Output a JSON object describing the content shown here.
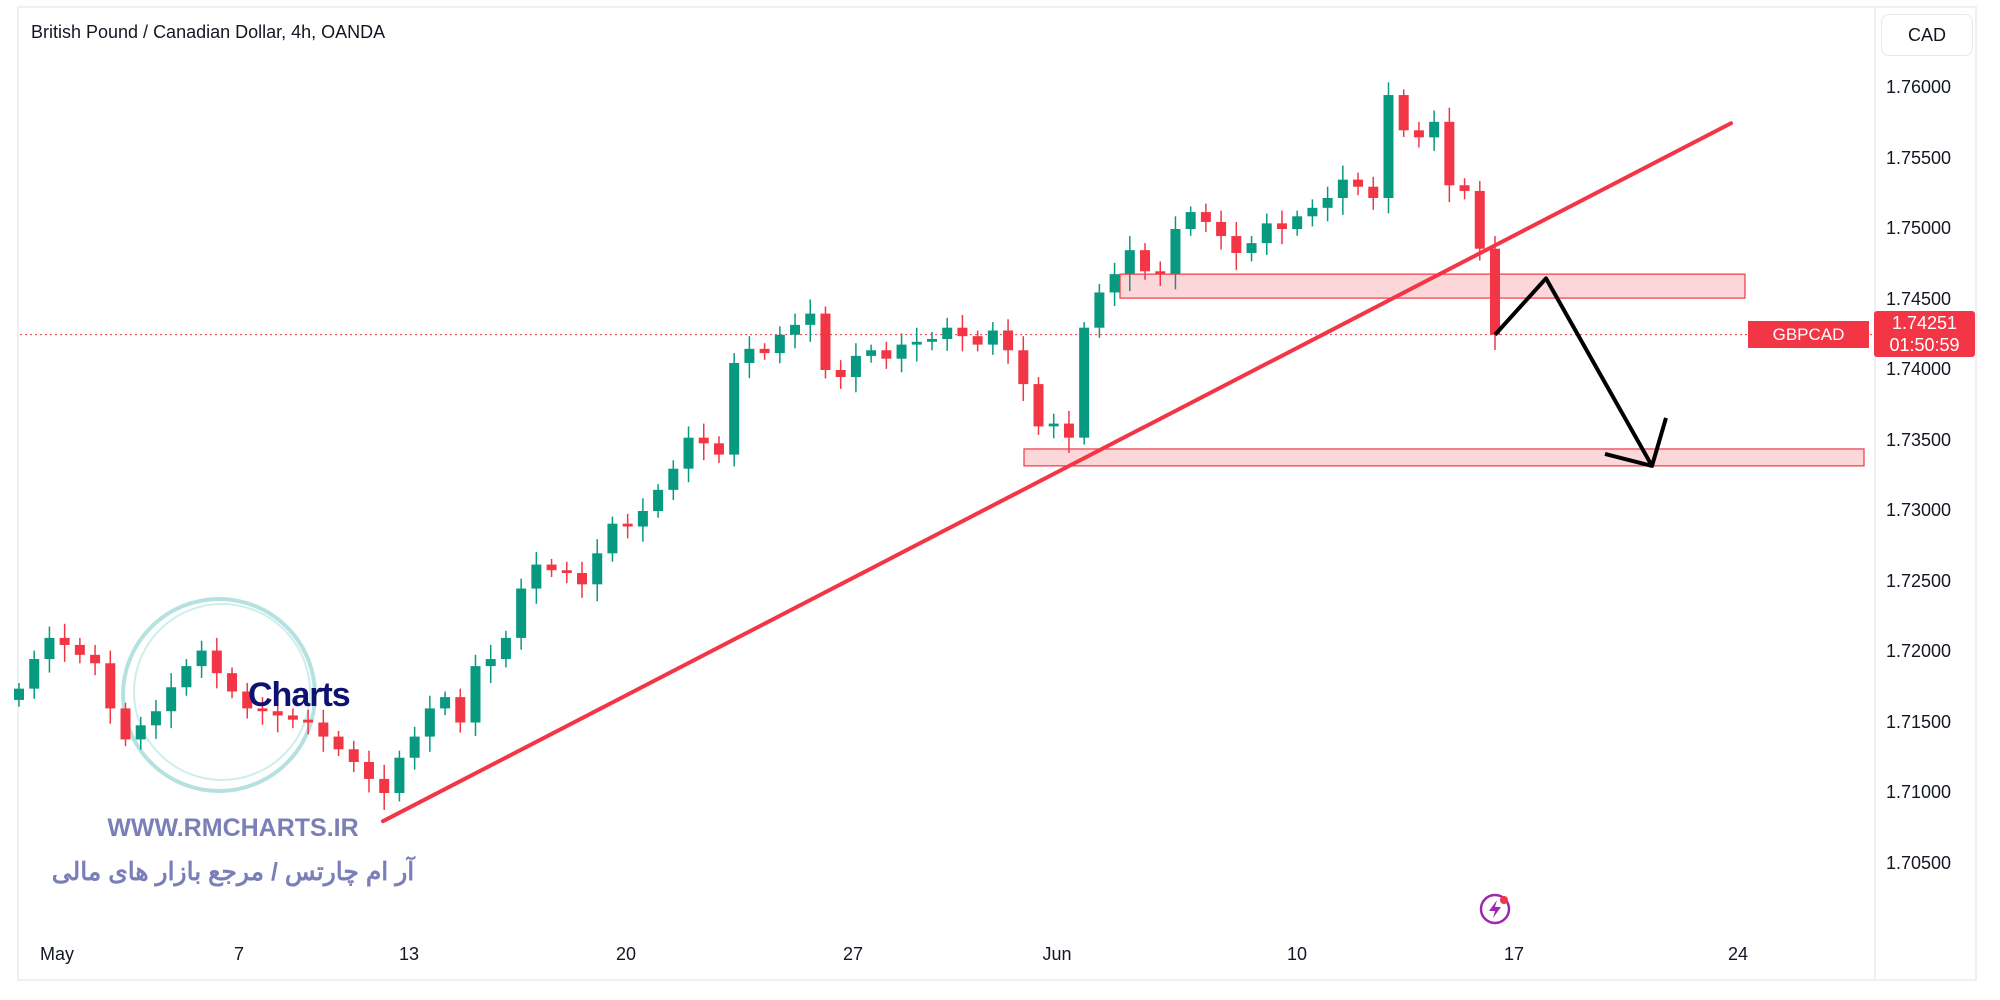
{
  "header": {
    "title": "British Pound / Canadian Dollar, 4h, OANDA",
    "currency_button": "CAD"
  },
  "price_tag": {
    "symbol": "GBPCAD",
    "price": "1.74251",
    "countdown": "01:50:59"
  },
  "watermark": {
    "logo": "Charts",
    "url": "WWW.RMCHARTS.IR",
    "tagline": "آر ام چارتس / مرجع بازار های مالی"
  },
  "colors": {
    "up": "#089981",
    "down": "#f23645",
    "drawing": "#f23645",
    "arrow": "#000000",
    "zone_fill": "#fbd5d8"
  },
  "chart_data": {
    "type": "candlestick",
    "title": "British Pound / Canadian Dollar, 4h, OANDA",
    "y_ticks": [
      "1.76000",
      "1.75500",
      "1.75000",
      "1.74500",
      "1.74000",
      "1.73500",
      "1.73000",
      "1.72500",
      "1.72000",
      "1.71500",
      "1.71000",
      "1.70500"
    ],
    "ylim": [
      1.703,
      1.7625
    ],
    "x_ticks": [
      "May",
      "7",
      "13",
      "20",
      "27",
      "Jun",
      "10",
      "17",
      "24"
    ],
    "last_price": 1.74251,
    "closes": [
      1.7174,
      1.7195,
      1.721,
      1.7205,
      1.7198,
      1.7192,
      1.716,
      1.7138,
      1.7148,
      1.7158,
      1.7175,
      1.719,
      1.7201,
      1.7185,
      1.7172,
      1.716,
      1.7158,
      1.7155,
      1.7152,
      1.715,
      1.714,
      1.7131,
      1.7122,
      1.711,
      1.71,
      1.7125,
      1.714,
      1.716,
      1.7168,
      1.715,
      1.719,
      1.7195,
      1.721,
      1.7245,
      1.7262,
      1.7258,
      1.7256,
      1.7248,
      1.727,
      1.7291,
      1.7289,
      1.73,
      1.7315,
      1.733,
      1.7352,
      1.7348,
      1.734,
      1.7405,
      1.7415,
      1.7412,
      1.7425,
      1.7432,
      1.744,
      1.74,
      1.7395,
      1.741,
      1.7414,
      1.7408,
      1.7418,
      1.742,
      1.7422,
      1.743,
      1.7424,
      1.7418,
      1.7428,
      1.7414,
      1.739,
      1.736,
      1.7362,
      1.7352,
      1.743,
      1.7455,
      1.7468,
      1.7485,
      1.747,
      1.7468,
      1.75,
      1.7512,
      1.7505,
      1.7495,
      1.7483,
      1.749,
      1.7504,
      1.75,
      1.7509,
      1.7515,
      1.7522,
      1.7535,
      1.753,
      1.7522,
      1.7595,
      1.757,
      1.7565,
      1.7576,
      1.7531,
      1.7527,
      1.7486,
      1.7425
    ],
    "zones": [
      {
        "from": 1.7451,
        "to": 1.7468
      },
      {
        "from": 1.7332,
        "to": 1.7344
      }
    ],
    "trendline": [
      1.708,
      1.7575
    ],
    "projection": [
      1.7425,
      1.7465,
      1.7332
    ]
  }
}
